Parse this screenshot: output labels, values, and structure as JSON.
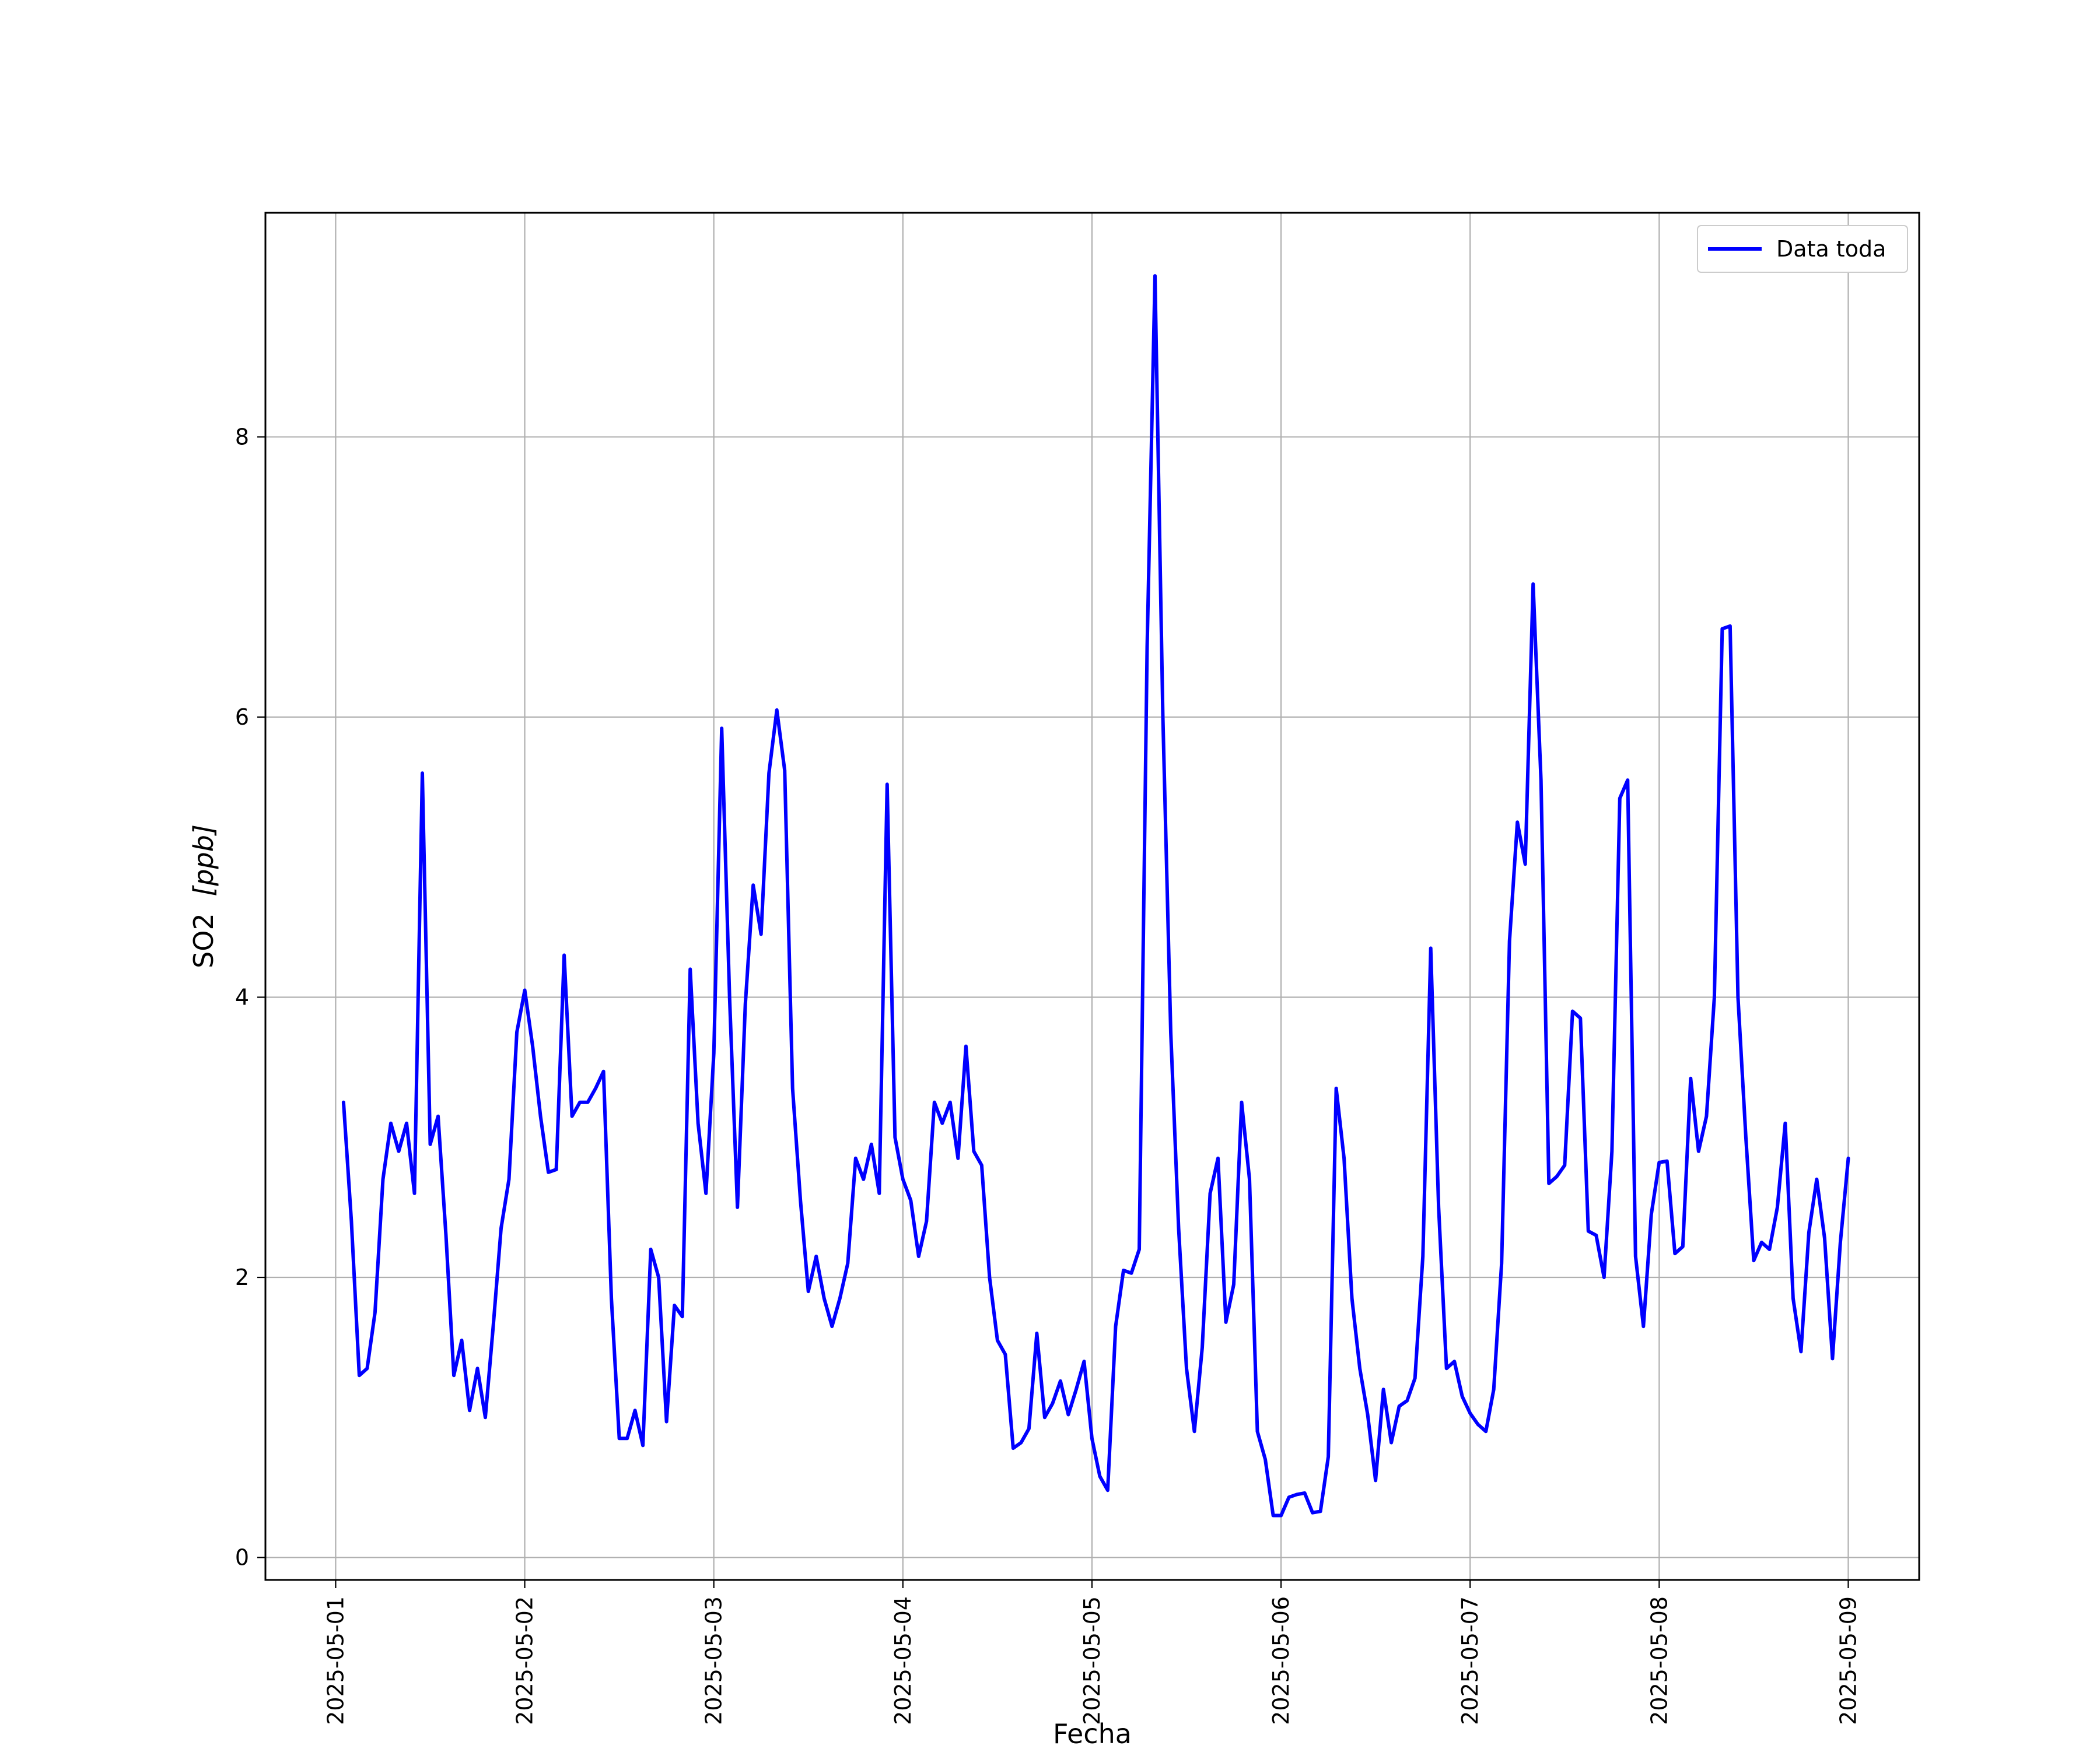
{
  "chart_data": {
    "type": "line",
    "title": "",
    "xlabel": "Fecha",
    "ylabel": "SO2",
    "ylabel_unit": "[ppb]",
    "xlim": [
      "2025-05-00 15:05",
      "2025-05-09 09:00"
    ],
    "ylim": [
      -0.16,
      9.6
    ],
    "x_ticks": [
      "2025-05-01",
      "2025-05-02",
      "2025-05-03",
      "2025-05-04",
      "2025-05-05",
      "2025-05-06",
      "2025-05-07",
      "2025-05-08",
      "2025-05-09"
    ],
    "y_ticks": [
      0,
      2,
      4,
      6,
      8
    ],
    "grid": true,
    "legend": {
      "placement": "top-right"
    },
    "series": [
      {
        "name": "Data toda",
        "color": "#0000ff",
        "x": [
          "2025-05-01 01:00",
          "2025-05-01 02:00",
          "2025-05-01 03:00",
          "2025-05-01 04:00",
          "2025-05-01 05:00",
          "2025-05-01 06:00",
          "2025-05-01 07:00",
          "2025-05-01 08:00",
          "2025-05-01 09:00",
          "2025-05-01 10:00",
          "2025-05-01 11:00",
          "2025-05-01 12:00",
          "2025-05-01 13:00",
          "2025-05-01 14:00",
          "2025-05-01 15:00",
          "2025-05-01 16:00",
          "2025-05-01 17:00",
          "2025-05-01 18:00",
          "2025-05-01 19:00",
          "2025-05-01 20:00",
          "2025-05-01 21:00",
          "2025-05-01 22:00",
          "2025-05-01 23:00",
          "2025-05-02 00:00",
          "2025-05-02 01:00",
          "2025-05-02 02:00",
          "2025-05-02 03:00",
          "2025-05-02 04:00",
          "2025-05-02 05:00",
          "2025-05-02 06:00",
          "2025-05-02 07:00",
          "2025-05-02 08:00",
          "2025-05-02 09:00",
          "2025-05-02 10:00",
          "2025-05-02 11:00",
          "2025-05-02 12:00",
          "2025-05-02 13:00",
          "2025-05-02 14:00",
          "2025-05-02 15:00",
          "2025-05-02 16:00",
          "2025-05-02 17:00",
          "2025-05-02 18:00",
          "2025-05-02 19:00",
          "2025-05-02 20:00",
          "2025-05-02 21:00",
          "2025-05-02 22:00",
          "2025-05-02 23:00",
          "2025-05-03 00:00",
          "2025-05-03 01:00",
          "2025-05-03 02:00",
          "2025-05-03 03:00",
          "2025-05-03 04:00",
          "2025-05-03 05:00",
          "2025-05-03 06:00",
          "2025-05-03 07:00",
          "2025-05-03 08:00",
          "2025-05-03 09:00",
          "2025-05-03 10:00",
          "2025-05-03 11:00",
          "2025-05-03 12:00",
          "2025-05-03 13:00",
          "2025-05-03 14:00",
          "2025-05-03 15:00",
          "2025-05-03 16:00",
          "2025-05-03 17:00",
          "2025-05-03 18:00",
          "2025-05-03 19:00",
          "2025-05-03 20:00",
          "2025-05-03 21:00",
          "2025-05-03 22:00",
          "2025-05-03 23:00",
          "2025-05-04 00:00",
          "2025-05-04 01:00",
          "2025-05-04 02:00",
          "2025-05-04 03:00",
          "2025-05-04 04:00",
          "2025-05-04 05:00",
          "2025-05-04 06:00",
          "2025-05-04 07:00",
          "2025-05-04 08:00",
          "2025-05-04 09:00",
          "2025-05-04 10:00",
          "2025-05-04 11:00",
          "2025-05-04 12:00",
          "2025-05-04 13:00",
          "2025-05-04 14:00",
          "2025-05-04 15:00",
          "2025-05-04 16:00",
          "2025-05-04 17:00",
          "2025-05-04 18:00",
          "2025-05-04 19:00",
          "2025-05-04 20:00",
          "2025-05-04 21:00",
          "2025-05-04 22:00",
          "2025-05-04 23:00",
          "2025-05-05 00:00",
          "2025-05-05 01:00",
          "2025-05-05 02:00",
          "2025-05-05 03:00",
          "2025-05-05 04:00",
          "2025-05-05 05:00",
          "2025-05-05 06:00",
          "2025-05-05 07:00",
          "2025-05-05 08:00",
          "2025-05-05 09:00",
          "2025-05-05 10:00",
          "2025-05-05 11:00",
          "2025-05-05 12:00",
          "2025-05-05 13:00",
          "2025-05-05 14:00",
          "2025-05-05 15:00",
          "2025-05-05 16:00",
          "2025-05-05 17:00",
          "2025-05-05 18:00",
          "2025-05-05 19:00",
          "2025-05-05 20:00",
          "2025-05-05 21:00",
          "2025-05-05 22:00",
          "2025-05-05 23:00",
          "2025-05-06 00:00",
          "2025-05-06 01:00",
          "2025-05-06 02:00",
          "2025-05-06 03:00",
          "2025-05-06 04:00",
          "2025-05-06 05:00",
          "2025-05-06 06:00",
          "2025-05-06 07:00",
          "2025-05-06 08:00",
          "2025-05-06 09:00",
          "2025-05-06 10:00",
          "2025-05-06 11:00",
          "2025-05-06 12:00",
          "2025-05-06 13:00",
          "2025-05-06 14:00",
          "2025-05-06 15:00",
          "2025-05-06 16:00",
          "2025-05-06 17:00",
          "2025-05-06 18:00",
          "2025-05-06 19:00",
          "2025-05-06 20:00",
          "2025-05-06 21:00",
          "2025-05-06 22:00",
          "2025-05-06 23:00",
          "2025-05-07 00:00",
          "2025-05-07 01:00",
          "2025-05-07 02:00",
          "2025-05-07 03:00",
          "2025-05-07 04:00",
          "2025-05-07 05:00",
          "2025-05-07 06:00",
          "2025-05-07 07:00",
          "2025-05-07 08:00",
          "2025-05-07 09:00",
          "2025-05-07 10:00",
          "2025-05-07 11:00",
          "2025-05-07 12:00",
          "2025-05-07 13:00",
          "2025-05-07 14:00",
          "2025-05-07 15:00",
          "2025-05-07 16:00",
          "2025-05-07 17:00",
          "2025-05-07 18:00",
          "2025-05-07 19:00",
          "2025-05-07 20:00",
          "2025-05-07 21:00",
          "2025-05-07 22:00",
          "2025-05-07 23:00",
          "2025-05-08 00:00",
          "2025-05-08 01:00",
          "2025-05-08 02:00",
          "2025-05-08 03:00",
          "2025-05-08 04:00",
          "2025-05-08 05:00",
          "2025-05-08 06:00",
          "2025-05-08 07:00",
          "2025-05-08 08:00",
          "2025-05-08 09:00",
          "2025-05-08 10:00",
          "2025-05-08 11:00",
          "2025-05-08 12:00",
          "2025-05-08 13:00",
          "2025-05-08 14:00",
          "2025-05-08 15:00",
          "2025-05-08 16:00",
          "2025-05-08 17:00",
          "2025-05-08 18:00",
          "2025-05-08 19:00",
          "2025-05-08 20:00",
          "2025-05-08 21:00",
          "2025-05-08 22:00",
          "2025-05-08 23:00",
          "2025-05-09 00:00"
        ],
        "values": [
          3.25,
          2.4,
          1.3,
          1.35,
          1.75,
          2.7,
          3.1,
          2.9,
          3.1,
          2.6,
          5.6,
          2.95,
          3.15,
          2.3,
          1.3,
          1.55,
          1.05,
          1.35,
          1.0,
          1.65,
          2.35,
          2.7,
          3.75,
          4.05,
          3.65,
          3.15,
          2.75,
          2.77,
          4.3,
          3.15,
          3.25,
          3.25,
          3.35,
          3.47,
          1.85,
          0.85,
          0.85,
          1.05,
          0.8,
          2.2,
          2.0,
          0.97,
          1.8,
          1.72,
          4.2,
          3.1,
          2.6,
          3.6,
          5.92,
          4.0,
          2.5,
          3.95,
          4.8,
          4.45,
          5.6,
          6.05,
          5.62,
          3.35,
          2.55,
          1.9,
          2.15,
          1.85,
          1.65,
          1.85,
          2.1,
          2.85,
          2.7,
          2.95,
          2.6,
          5.52,
          3.0,
          2.7,
          2.55,
          2.15,
          2.4,
          3.25,
          3.1,
          3.25,
          2.85,
          3.65,
          2.9,
          2.8,
          2.0,
          1.55,
          1.45,
          0.78,
          0.82,
          0.92,
          1.6,
          1.0,
          1.1,
          1.26,
          1.02,
          1.2,
          1.4,
          0.85,
          0.58,
          0.48,
          1.65,
          2.05,
          2.03,
          2.2,
          6.5,
          9.15,
          6.0,
          3.75,
          2.35,
          1.35,
          0.9,
          1.5,
          2.6,
          2.85,
          1.68,
          1.95,
          3.25,
          2.7,
          0.9,
          0.7,
          0.3,
          0.3,
          0.43,
          0.45,
          0.46,
          0.32,
          0.33,
          0.72,
          3.35,
          2.85,
          1.85,
          1.35,
          1.02,
          0.55,
          1.2,
          0.82,
          1.08,
          1.12,
          1.28,
          2.15,
          4.35,
          2.5,
          1.35,
          1.4,
          1.15,
          1.03,
          0.95,
          0.9,
          1.2,
          2.1,
          4.4,
          5.25,
          4.95,
          6.95,
          5.55,
          2.67,
          2.72,
          2.8,
          3.9,
          3.85,
          2.33,
          2.3,
          2.0,
          2.9,
          5.42,
          5.55,
          2.15,
          1.65,
          2.45,
          2.82,
          2.83,
          2.17,
          2.22,
          3.42,
          2.9,
          3.15,
          4.0,
          6.63,
          6.65,
          4.0,
          3.0,
          2.12,
          2.25,
          2.2,
          2.5,
          3.1,
          1.85,
          1.47,
          2.32,
          2.7,
          2.28,
          1.42,
          2.25,
          2.85
        ]
      }
    ]
  }
}
